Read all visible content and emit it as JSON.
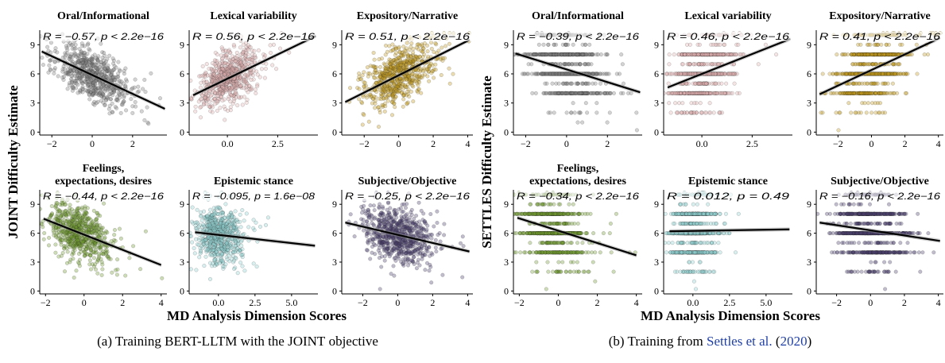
{
  "figures": [
    {
      "ylabel": "JOINT Difficulty Estimate",
      "xlabel": "MD Analysis Dimension Scores",
      "caption": {
        "prefix": "(a) Training ",
        "sc1": "BERT-LLTM",
        "mid": " with the ",
        "sc2": "JOINT",
        "suffix": " objective"
      }
    },
    {
      "ylabel": "SETTLES Difficulty Estimate",
      "xlabel": "MD Analysis Dimension Scores",
      "caption": {
        "prefix": "(b) Training from ",
        "cite_name": "Settles et al.",
        "open": " (",
        "cite_year": "2020",
        "close": ")"
      }
    }
  ],
  "chart_data": [
    {
      "figure": 0,
      "type": "scatter",
      "title": "Oral/Informational",
      "annotation": "R = −0.57, p < 2.2e−16",
      "xlim": [
        -2.6,
        3.7
      ],
      "ylim": [
        -0.3,
        10.5
      ],
      "xticks": [
        "−2",
        "0",
        "2"
      ],
      "xtick_values": [
        -2,
        0,
        2
      ],
      "yticks": [
        "0",
        "3",
        "6",
        "9"
      ],
      "ytick_values": [
        0,
        3,
        6,
        9
      ],
      "point_color": "#808080",
      "line": {
        "x": [
          -2.5,
          3.6
        ],
        "y": [
          8.3,
          2.4
        ]
      },
      "cloud": {
        "x_mean": 0,
        "x_sd": 0.9,
        "y_sd": 1.3,
        "discrete": false,
        "seed": 11
      }
    },
    {
      "figure": 0,
      "type": "scatter",
      "title": "Lexical variability",
      "annotation": "R = 0.56, p < 2.2e−16",
      "xlim": [
        -1.9,
        4.5
      ],
      "ylim": [
        -0.3,
        10.5
      ],
      "xticks": [
        "0.0",
        "2.5"
      ],
      "xtick_values": [
        0,
        2.5
      ],
      "yticks": [
        "0",
        "3",
        "6",
        "9"
      ],
      "ytick_values": [
        0,
        3,
        6,
        9
      ],
      "point_color": "#e3b3b3",
      "line": {
        "x": [
          -1.7,
          4.4
        ],
        "y": [
          3.8,
          9.9
        ]
      },
      "cloud": {
        "x_mean": 0,
        "x_sd": 0.7,
        "y_sd": 1.3,
        "discrete": false,
        "seed": 12
      }
    },
    {
      "figure": 0,
      "type": "scatter",
      "title": "Expository/Narrative",
      "annotation": "R = 0.51, p < 2.2e−16",
      "xlim": [
        -3.3,
        4.3
      ],
      "ylim": [
        -0.3,
        10.5
      ],
      "xticks": [
        "−2",
        "0",
        "2",
        "4"
      ],
      "xtick_values": [
        -2,
        0,
        2,
        4
      ],
      "yticks": [
        "0",
        "3",
        "6",
        "9"
      ],
      "ytick_values": [
        0,
        3,
        6,
        9
      ],
      "point_color": "#c49a1e",
      "line": {
        "x": [
          -3.1,
          4.1
        ],
        "y": [
          3.1,
          9.5
        ]
      },
      "cloud": {
        "x_mean": 0,
        "x_sd": 1.0,
        "y_sd": 1.3,
        "discrete": false,
        "seed": 13
      }
    },
    {
      "figure": 0,
      "type": "scatter",
      "title": "Feelings,\nexpectations, desires",
      "annotation": "R = −0.44, p < 2.2e−16",
      "xlim": [
        -2.3,
        4.3
      ],
      "ylim": [
        -0.3,
        10.5
      ],
      "xticks": [
        "−2",
        "0",
        "2",
        "4"
      ],
      "xtick_values": [
        -2,
        0,
        2,
        4
      ],
      "yticks": [
        "0",
        "3",
        "6",
        "9"
      ],
      "ytick_values": [
        0,
        3,
        6,
        9
      ],
      "point_color": "#6f9a2e",
      "line": {
        "x": [
          -2.1,
          4.0
        ],
        "y": [
          7.5,
          2.7
        ]
      },
      "cloud": {
        "x_mean": -0.3,
        "x_sd": 0.8,
        "y_sd": 1.4,
        "discrete": false,
        "seed": 14
      }
    },
    {
      "figure": 0,
      "type": "scatter",
      "title": "Epistemic stance",
      "annotation": "R = −0.095, p = 1.6e−08",
      "xlim": [
        -2.0,
        6.8
      ],
      "ylim": [
        -0.3,
        10.5
      ],
      "xticks": [
        "0.0",
        "2.5",
        "5.0"
      ],
      "xtick_values": [
        0,
        2.5,
        5
      ],
      "yticks": [
        "0",
        "3",
        "6",
        "9"
      ],
      "ytick_values": [
        0,
        3,
        6,
        9
      ],
      "point_color": "#8fd1d1",
      "line": {
        "x": [
          -1.6,
          6.6
        ],
        "y": [
          6.1,
          4.7
        ]
      },
      "cloud": {
        "x_mean": 0,
        "x_sd": 0.75,
        "y_sd": 1.5,
        "discrete": false,
        "seed": 15
      }
    },
    {
      "figure": 0,
      "type": "scatter",
      "title": "Subjective/Objective",
      "annotation": "R = −0.25, p < 2.2e−16",
      "xlim": [
        -3.2,
        4.3
      ],
      "ylim": [
        -0.3,
        10.5
      ],
      "xticks": [
        "−2",
        "0",
        "2",
        "4"
      ],
      "xtick_values": [
        -2,
        0,
        2,
        4
      ],
      "yticks": [
        "0",
        "3",
        "6",
        "9"
      ],
      "ytick_values": [
        0,
        3,
        6,
        9
      ],
      "point_color": "#4b3f6e",
      "line": {
        "x": [
          -3.0,
          4.1
        ],
        "y": [
          7.1,
          4.1
        ]
      },
      "cloud": {
        "x_mean": 0,
        "x_sd": 1.0,
        "y_sd": 1.5,
        "discrete": false,
        "seed": 16
      }
    },
    {
      "figure": 1,
      "type": "scatter",
      "title": "Oral/Informational",
      "annotation": "R = −0.39, p < 2.2e−16",
      "xlim": [
        -2.6,
        3.7
      ],
      "ylim": [
        -0.3,
        10.5
      ],
      "xticks": [
        "−2",
        "0",
        "2"
      ],
      "xtick_values": [
        -2,
        0,
        2
      ],
      "yticks": [
        "0",
        "3",
        "6",
        "9"
      ],
      "ytick_values": [
        0,
        3,
        6,
        9
      ],
      "point_color": "#808080",
      "line": {
        "x": [
          -2.5,
          3.6
        ],
        "y": [
          8.1,
          4.1
        ]
      },
      "cloud": {
        "x_mean": 0,
        "x_sd": 0.9,
        "y_sd": 1.6,
        "discrete": true,
        "seed": 21
      }
    },
    {
      "figure": 1,
      "type": "scatter",
      "title": "Lexical variability",
      "annotation": "R = 0.46, p < 2.2e−16",
      "xlim": [
        -1.9,
        4.5
      ],
      "ylim": [
        -0.3,
        10.5
      ],
      "xticks": [
        "0.0",
        "2.5"
      ],
      "xtick_values": [
        0,
        2.5
      ],
      "yticks": [
        "0",
        "3",
        "6",
        "9"
      ],
      "ytick_values": [
        0,
        3,
        6,
        9
      ],
      "point_color": "#e3b3b3",
      "line": {
        "x": [
          -1.7,
          4.4
        ],
        "y": [
          4.6,
          9.6
        ]
      },
      "cloud": {
        "x_mean": 0,
        "x_sd": 0.7,
        "y_sd": 1.6,
        "discrete": true,
        "seed": 22
      }
    },
    {
      "figure": 1,
      "type": "scatter",
      "title": "Expository/Narrative",
      "annotation": "R = 0.41, p < 2.2e−16",
      "xlim": [
        -3.3,
        4.3
      ],
      "ylim": [
        -0.3,
        10.5
      ],
      "xticks": [
        "−2",
        "0",
        "2",
        "4"
      ],
      "xtick_values": [
        -2,
        0,
        2,
        4
      ],
      "yticks": [
        "0",
        "3",
        "6",
        "9"
      ],
      "ytick_values": [
        0,
        3,
        6,
        9
      ],
      "point_color": "#c49a1e",
      "line": {
        "x": [
          -3.1,
          4.1
        ],
        "y": [
          3.9,
          9.7
        ]
      },
      "cloud": {
        "x_mean": 0,
        "x_sd": 1.0,
        "y_sd": 1.6,
        "discrete": true,
        "seed": 23
      }
    },
    {
      "figure": 1,
      "type": "scatter",
      "title": "Feelings,\nexpectations, desires",
      "annotation": "R = −0.34, p < 2.2e−16",
      "xlim": [
        -2.3,
        4.3
      ],
      "ylim": [
        -0.3,
        10.5
      ],
      "xticks": [
        "−2",
        "0",
        "2",
        "4"
      ],
      "xtick_values": [
        -2,
        0,
        2,
        4
      ],
      "yticks": [
        "0",
        "3",
        "6",
        "9"
      ],
      "ytick_values": [
        0,
        3,
        6,
        9
      ],
      "point_color": "#6f9a2e",
      "line": {
        "x": [
          -2.1,
          4.0
        ],
        "y": [
          7.6,
          3.7
        ]
      },
      "cloud": {
        "x_mean": -0.3,
        "x_sd": 0.8,
        "y_sd": 1.7,
        "discrete": true,
        "seed": 24
      }
    },
    {
      "figure": 1,
      "type": "scatter",
      "title": "Epistemic stance",
      "annotation": "R = 0.012, p = 0.49",
      "xlim": [
        -2.0,
        6.8
      ],
      "ylim": [
        -0.3,
        10.5
      ],
      "xticks": [
        "0.0",
        "2.5",
        "5.0"
      ],
      "xtick_values": [
        0,
        2.5,
        5
      ],
      "yticks": [
        "0",
        "3",
        "6",
        "9"
      ],
      "ytick_values": [
        0,
        3,
        6,
        9
      ],
      "point_color": "#8fd1d1",
      "line": {
        "x": [
          -1.6,
          6.6
        ],
        "y": [
          6.2,
          6.4
        ]
      },
      "cloud": {
        "x_mean": 0,
        "x_sd": 0.75,
        "y_sd": 1.7,
        "discrete": true,
        "seed": 25
      }
    },
    {
      "figure": 1,
      "type": "scatter",
      "title": "Subjective/Objective",
      "annotation": "R = −0.16, p < 2.2e−16",
      "xlim": [
        -3.2,
        4.3
      ],
      "ylim": [
        -0.3,
        10.5
      ],
      "xticks": [
        "−2",
        "0",
        "2",
        "4"
      ],
      "xtick_values": [
        -2,
        0,
        2,
        4
      ],
      "yticks": [
        "0",
        "3",
        "6",
        "9"
      ],
      "ytick_values": [
        0,
        3,
        6,
        9
      ],
      "point_color": "#4b3f6e",
      "line": {
        "x": [
          -3.0,
          4.1
        ],
        "y": [
          7.1,
          5.2
        ]
      },
      "cloud": {
        "x_mean": 0,
        "x_sd": 1.0,
        "y_sd": 1.7,
        "discrete": true,
        "seed": 26
      }
    }
  ]
}
